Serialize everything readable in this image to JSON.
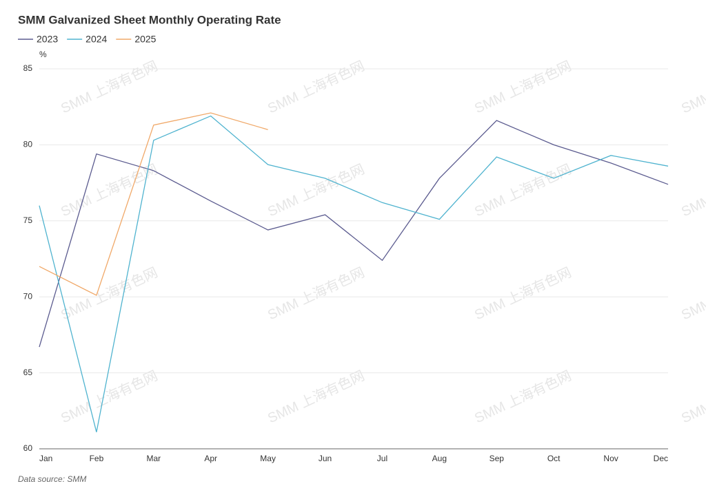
{
  "chart_data": {
    "type": "line",
    "title": "SMM Galvanized Sheet Monthly Operating Rate",
    "y_unit": "%",
    "source": "Data source:  SMM",
    "watermark": "SMM 上海有色网",
    "categories": [
      "Jan",
      "Feb",
      "Mar",
      "Apr",
      "May",
      "Jun",
      "Jul",
      "Aug",
      "Sep",
      "Oct",
      "Nov",
      "Dec"
    ],
    "series": [
      {
        "name": "2023",
        "color": "#5b5b8f",
        "values": [
          66.7,
          79.4,
          78.3,
          76.3,
          74.4,
          75.4,
          72.4,
          77.8,
          81.6,
          80.0,
          78.8,
          77.4
        ]
      },
      {
        "name": "2024",
        "color": "#4fb3cf",
        "values": [
          76.0,
          61.1,
          80.3,
          81.9,
          78.7,
          77.8,
          76.2,
          75.1,
          79.2,
          77.8,
          79.3,
          78.6
        ]
      },
      {
        "name": "2025",
        "color": "#f0a868",
        "values": [
          72.0,
          70.1,
          81.3,
          82.1,
          81.0,
          null,
          null,
          null,
          null,
          null,
          null,
          null
        ]
      }
    ],
    "ylim": [
      60,
      85
    ],
    "yticks": [
      60,
      65,
      70,
      75,
      80,
      85
    ],
    "grid": true,
    "legend": "top-left"
  }
}
